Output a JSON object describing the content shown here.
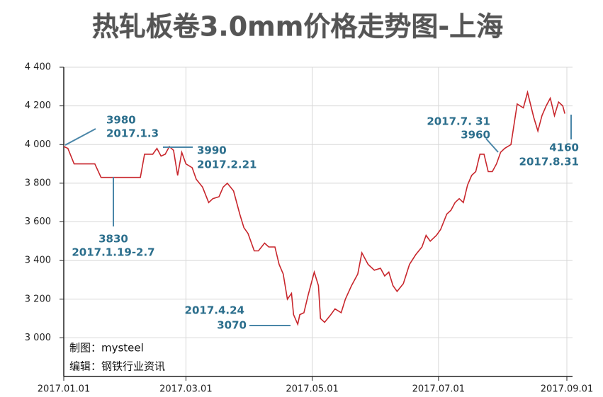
{
  "chart_data": {
    "type": "line",
    "title": "热轧板卷3.0mm价格走势图-上海",
    "x": [
      "2017-01-01",
      "2017-01-03",
      "2017-01-06",
      "2017-01-16",
      "2017-01-19",
      "2017-02-07",
      "2017-02-09",
      "2017-02-13",
      "2017-02-15",
      "2017-02-17",
      "2017-02-19",
      "2017-02-21",
      "2017-02-23",
      "2017-02-25",
      "2017-02-27",
      "2017-03-01",
      "2017-03-04",
      "2017-03-06",
      "2017-03-09",
      "2017-03-12",
      "2017-03-14",
      "2017-03-17",
      "2017-03-19",
      "2017-03-21",
      "2017-03-24",
      "2017-03-27",
      "2017-03-29",
      "2017-03-31",
      "2017-04-03",
      "2017-04-05",
      "2017-04-08",
      "2017-04-10",
      "2017-04-13",
      "2017-04-15",
      "2017-04-17",
      "2017-04-19",
      "2017-04-21",
      "2017-04-22",
      "2017-04-24",
      "2017-04-25",
      "2017-04-27",
      "2017-04-29",
      "2017-05-02",
      "2017-05-04",
      "2017-05-05",
      "2017-05-07",
      "2017-05-10",
      "2017-05-12",
      "2017-05-15",
      "2017-05-17",
      "2017-05-20",
      "2017-05-23",
      "2017-05-25",
      "2017-05-28",
      "2017-05-31",
      "2017-06-03",
      "2017-06-05",
      "2017-06-07",
      "2017-06-09",
      "2017-06-11",
      "2017-06-14",
      "2017-06-17",
      "2017-06-20",
      "2017-06-23",
      "2017-06-25",
      "2017-06-27",
      "2017-06-30",
      "2017-07-02",
      "2017-07-05",
      "2017-07-07",
      "2017-07-09",
      "2017-07-11",
      "2017-07-13",
      "2017-07-15",
      "2017-07-17",
      "2017-07-19",
      "2017-07-21",
      "2017-07-23",
      "2017-07-25",
      "2017-07-27",
      "2017-07-29",
      "2017-07-31",
      "2017-08-02",
      "2017-08-05",
      "2017-08-08",
      "2017-08-11",
      "2017-08-13",
      "2017-08-16",
      "2017-08-18",
      "2017-08-20",
      "2017-08-22",
      "2017-08-24",
      "2017-08-26",
      "2017-08-28",
      "2017-08-30",
      "2017-08-31"
    ],
    "series": [
      {
        "name": "上海",
        "color": "#c8262c",
        "values": [
          3990,
          3980,
          3900,
          3900,
          3830,
          3830,
          3950,
          3950,
          3980,
          3940,
          3950,
          3990,
          3970,
          3840,
          3960,
          3900,
          3880,
          3820,
          3780,
          3700,
          3720,
          3730,
          3780,
          3800,
          3760,
          3640,
          3570,
          3540,
          3450,
          3450,
          3490,
          3470,
          3470,
          3380,
          3330,
          3200,
          3230,
          3120,
          3070,
          3120,
          3130,
          3220,
          3340,
          3270,
          3100,
          3080,
          3120,
          3150,
          3130,
          3200,
          3270,
          3330,
          3440,
          3380,
          3350,
          3360,
          3320,
          3340,
          3270,
          3240,
          3280,
          3380,
          3430,
          3470,
          3530,
          3500,
          3530,
          3560,
          3640,
          3660,
          3700,
          3720,
          3700,
          3790,
          3840,
          3860,
          3950,
          3950,
          3860,
          3860,
          3900,
          3960,
          3980,
          4000,
          4210,
          4190,
          4270,
          4140,
          4070,
          4150,
          4200,
          4240,
          4150,
          4220,
          4200,
          4160
        ]
      }
    ],
    "ylim": [
      2800,
      4400
    ],
    "yticks": [
      {
        "value": 3000,
        "label": "3 000"
      },
      {
        "value": 3200,
        "label": "3 200"
      },
      {
        "value": 3400,
        "label": "3 400"
      },
      {
        "value": 3600,
        "label": "3 600"
      },
      {
        "value": 3800,
        "label": "3 800"
      },
      {
        "value": 4000,
        "label": "4 000"
      },
      {
        "value": 4200,
        "label": "4 200"
      },
      {
        "value": 4400,
        "label": "4 400"
      }
    ],
    "xlim": [
      "2017-01-01",
      "2017-09-01"
    ],
    "xticks": [
      {
        "value": "2017-01-01",
        "label": "2017.01.01"
      },
      {
        "value": "2017-03-01",
        "label": "2017.03.01"
      },
      {
        "value": "2017-05-01",
        "label": "2017.05.01"
      },
      {
        "value": "2017-07-01",
        "label": "2017.07.01"
      },
      {
        "value": "2017-09-01",
        "label": "2017.09.01"
      }
    ],
    "grid": true,
    "annotations": [
      [
        "3980",
        "2017.1.3"
      ],
      [
        "3990",
        "2017.2.21"
      ],
      [
        "3830",
        "2017.1.19-2.7"
      ],
      [
        "2017.4.24",
        "3070"
      ],
      [
        "2017.7. 31",
        "3960"
      ],
      [
        "4160",
        "2017.8.31"
      ]
    ],
    "notes": [
      "制图：mysteel",
      "编辑：钢铁行业资讯"
    ]
  }
}
